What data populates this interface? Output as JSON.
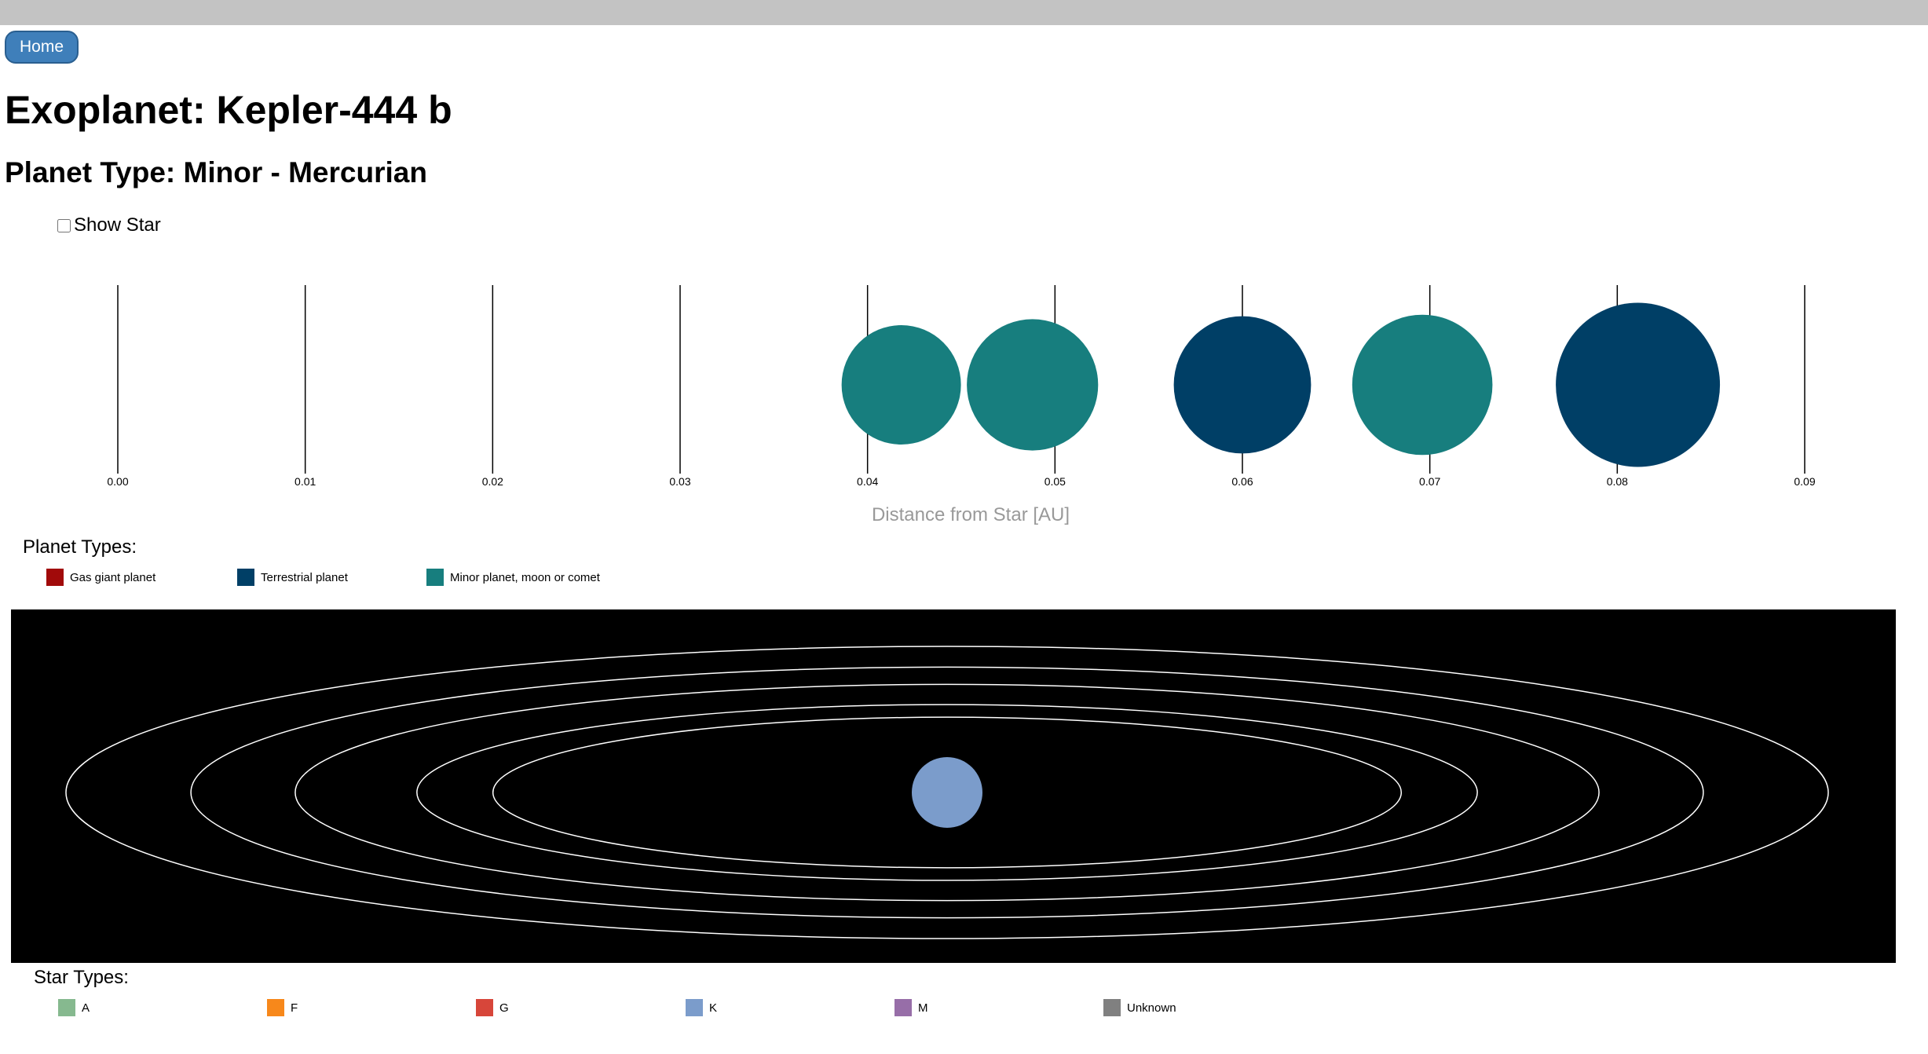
{
  "nav": {
    "home_label": "Home"
  },
  "header": {
    "title": "Exoplanet: Kepler-444 b",
    "planet_type": "Planet Type: Minor - Mercurian"
  },
  "controls": {
    "show_star_label": "Show Star",
    "show_star_checked": false
  },
  "chart_data": {
    "type": "scatter",
    "title": "",
    "xlabel": "Distance from Star [AU]",
    "ylabel": "",
    "xlim": [
      0.0,
      0.09
    ],
    "x_ticks": [
      "0.00",
      "0.01",
      "0.02",
      "0.03",
      "0.04",
      "0.05",
      "0.06",
      "0.07",
      "0.08",
      "0.09"
    ],
    "grid": true,
    "points": [
      {
        "distance": 0.0418,
        "relative_size": 0.4,
        "planet_type": "Minor planet, moon or comet"
      },
      {
        "distance": 0.0488,
        "relative_size": 0.44,
        "planet_type": "Minor planet, moon or comet"
      },
      {
        "distance": 0.06,
        "relative_size": 0.46,
        "planet_type": "Terrestrial planet"
      },
      {
        "distance": 0.0696,
        "relative_size": 0.47,
        "planet_type": "Minor planet, moon or comet"
      },
      {
        "distance": 0.0811,
        "relative_size": 0.55,
        "planet_type": "Terrestrial planet"
      }
    ]
  },
  "planet_legend": {
    "heading": "Planet Types:",
    "items": [
      {
        "label": "Gas giant planet",
        "color": "#a10a0a"
      },
      {
        "label": "Terrestrial planet",
        "color": "#003f66"
      },
      {
        "label": "Minor planet, moon or comet",
        "color": "#177e7e"
      }
    ]
  },
  "orbit_view": {
    "background": "#000000",
    "orbit_color": "#ffffff",
    "star_color": "#7b9ccb",
    "orbit_distances_au": [
      0.0418,
      0.0488,
      0.06,
      0.0696,
      0.0811
    ]
  },
  "star_legend": {
    "heading": "Star Types:",
    "items": [
      {
        "label": "A",
        "color": "#86b98f"
      },
      {
        "label": "F",
        "color": "#f7881b"
      },
      {
        "label": "G",
        "color": "#d7463a"
      },
      {
        "label": "K",
        "color": "#7b9ccb"
      },
      {
        "label": "M",
        "color": "#976ea8"
      },
      {
        "label": "Unknown",
        "color": "#808080"
      }
    ]
  }
}
